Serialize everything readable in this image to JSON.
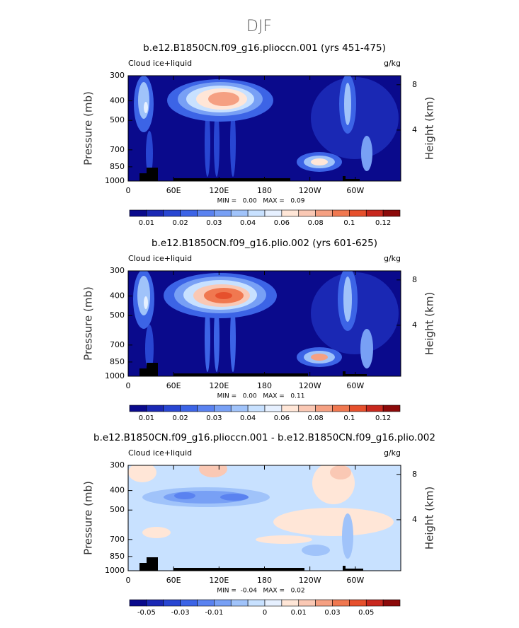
{
  "title": "DJF",
  "chart_data": [
    {
      "type": "contour",
      "title": "b.e12.B1850CN.f09_g16.plioccn.001 (yrs 451-475)",
      "left_label": "Cloud ice+liquid",
      "units": "g/kg",
      "stats": "MIN =   0.00   MAX =   0.09",
      "xlim": [
        0,
        360
      ],
      "xticks": [
        0,
        {
          "value": 60,
          "label": "60E"
        },
        {
          "value": 120,
          "label": "120E"
        },
        180,
        {
          "value": 240,
          "label": "120W"
        },
        {
          "value": 300,
          "label": "60W"
        }
      ],
      "ylabel": "Pressure (mb)",
      "log_y": true,
      "ylim": [
        1000,
        300
      ],
      "yticks": [
        300,
        400,
        500,
        700,
        850,
        1000
      ],
      "y2label": "Height (km)",
      "y2lim": [
        -0.5,
        8.8
      ],
      "y2ticks": [
        4,
        8
      ],
      "colorbar": {
        "colors": [
          "#0a0a8c",
          "#1a28b4",
          "#2846d2",
          "#3c64e6",
          "#5a82f0",
          "#78a0f5",
          "#a0c3fa",
          "#c8e1ff",
          "#e6f0ff",
          "#ffe6d7",
          "#fac8b4",
          "#f5a082",
          "#f07850",
          "#e6502d",
          "#c8281e",
          "#8c0a0a"
        ],
        "levels": [
          0.01,
          null,
          0.02,
          null,
          0.03,
          null,
          0.04,
          null,
          0.06,
          null,
          0.08,
          null,
          0.1,
          null,
          0.12
        ]
      }
    },
    {
      "type": "contour",
      "title": "b.e12.B1850CN.f09_g16.plio.002 (yrs 601-625)",
      "left_label": "Cloud ice+liquid",
      "units": "g/kg",
      "stats": "MIN =   0.00   MAX =   0.11",
      "xlim": [
        0,
        360
      ],
      "xticks": [
        0,
        {
          "value": 60,
          "label": "60E"
        },
        {
          "value": 120,
          "label": "120E"
        },
        180,
        {
          "value": 240,
          "label": "120W"
        },
        {
          "value": 300,
          "label": "60W"
        }
      ],
      "ylabel": "Pressure (mb)",
      "log_y": true,
      "ylim": [
        1000,
        300
      ],
      "yticks": [
        300,
        400,
        500,
        700,
        850,
        1000
      ],
      "y2label": "Height (km)",
      "y2lim": [
        -0.5,
        8.8
      ],
      "y2ticks": [
        4,
        8
      ],
      "colorbar": {
        "colors": [
          "#0a0a8c",
          "#1a28b4",
          "#2846d2",
          "#3c64e6",
          "#5a82f0",
          "#78a0f5",
          "#a0c3fa",
          "#c8e1ff",
          "#e6f0ff",
          "#ffe6d7",
          "#fac8b4",
          "#f5a082",
          "#f07850",
          "#e6502d",
          "#c8281e",
          "#8c0a0a"
        ],
        "levels": [
          0.01,
          null,
          0.02,
          null,
          0.03,
          null,
          0.04,
          null,
          0.06,
          null,
          0.08,
          null,
          0.1,
          null,
          0.12
        ]
      }
    },
    {
      "type": "contour",
      "title": "b.e12.B1850CN.f09_g16.plioccn.001 - b.e12.B1850CN.f09_g16.plio.002",
      "left_label": "Cloud ice+liquid",
      "units": "g/kg",
      "stats": "MIN =  -0.04   MAX =   0.02",
      "xlim": [
        0,
        360
      ],
      "xticks": [
        0,
        {
          "value": 60,
          "label": "60E"
        },
        {
          "value": 120,
          "label": "120E"
        },
        180,
        {
          "value": 240,
          "label": "120W"
        },
        {
          "value": 300,
          "label": "60W"
        }
      ],
      "ylabel": "Pressure (mb)",
      "log_y": true,
      "ylim": [
        1000,
        300
      ],
      "yticks": [
        300,
        400,
        500,
        700,
        850,
        1000
      ],
      "y2label": "Height (km)",
      "y2lim": [
        -0.5,
        8.8
      ],
      "y2ticks": [
        4,
        8
      ],
      "colorbar": {
        "colors": [
          "#0a0a8c",
          "#1a28b4",
          "#2846d2",
          "#3c64e6",
          "#5a82f0",
          "#78a0f5",
          "#a0c3fa",
          "#c8e1ff",
          "#e6f0ff",
          "#ffe6d7",
          "#fac8b4",
          "#f5a082",
          "#f07850",
          "#e6502d",
          "#c8281e",
          "#8c0a0a"
        ],
        "levels": [
          -0.05,
          null,
          -0.03,
          null,
          -0.01,
          null,
          null,
          0,
          null,
          0.01,
          null,
          0.03,
          null,
          0.05,
          null
        ]
      }
    }
  ]
}
